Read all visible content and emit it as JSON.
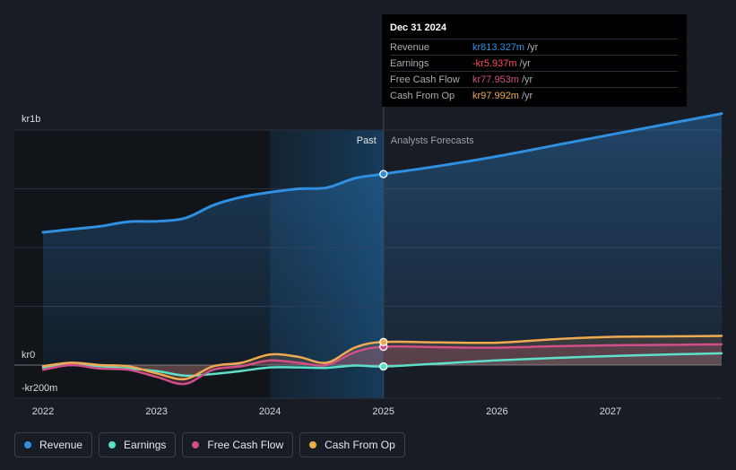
{
  "chart_data": {
    "type": "line",
    "currency_prefix": "kr",
    "x_ticks": [
      "2022",
      "2023",
      "2024",
      "2025",
      "2026",
      "2027"
    ],
    "xlim": [
      2021.9,
      2027.98
    ],
    "ylim": [
      -200,
      1000
    ],
    "y_labels": [
      {
        "value": 1000,
        "label": "kr1b"
      },
      {
        "value": 0,
        "label": "kr0"
      },
      {
        "value": -200,
        "label": "-kr200m"
      }
    ],
    "gridlines": [
      1000,
      750,
      500,
      250,
      0
    ],
    "past_label": "Past",
    "forecast_label": "Analysts Forecasts",
    "divider_x": 2025.0,
    "highlight_from": 2024.0,
    "series": [
      {
        "name": "Revenue",
        "color": "#2f8fe0",
        "points": [
          [
            2022.0,
            565
          ],
          [
            2022.25,
            578
          ],
          [
            2022.5,
            590
          ],
          [
            2022.75,
            610
          ],
          [
            2023.0,
            612
          ],
          [
            2023.25,
            625
          ],
          [
            2023.5,
            680
          ],
          [
            2023.75,
            715
          ],
          [
            2024.0,
            735
          ],
          [
            2024.25,
            750
          ],
          [
            2024.5,
            755
          ],
          [
            2024.75,
            795
          ],
          [
            2025.0,
            813
          ],
          [
            2025.5,
            848
          ],
          [
            2026.0,
            888
          ],
          [
            2026.5,
            934
          ],
          [
            2027.0,
            980
          ],
          [
            2027.5,
            1026
          ],
          [
            2027.98,
            1070
          ]
        ]
      },
      {
        "name": "Earnings",
        "color": "#5de0c7",
        "points": [
          [
            2022.0,
            -10
          ],
          [
            2022.25,
            0
          ],
          [
            2022.5,
            -5
          ],
          [
            2022.75,
            -15
          ],
          [
            2023.0,
            -25
          ],
          [
            2023.25,
            -45
          ],
          [
            2023.5,
            -38
          ],
          [
            2023.75,
            -25
          ],
          [
            2024.0,
            -10
          ],
          [
            2024.25,
            -10
          ],
          [
            2024.5,
            -12
          ],
          [
            2024.75,
            -2
          ],
          [
            2025.0,
            -6
          ],
          [
            2025.5,
            7
          ],
          [
            2026.0,
            20
          ],
          [
            2026.5,
            30
          ],
          [
            2027.0,
            38
          ],
          [
            2027.5,
            45
          ],
          [
            2027.98,
            50
          ]
        ]
      },
      {
        "name": "Free Cash Flow",
        "color": "#d04f87",
        "points": [
          [
            2022.0,
            -20
          ],
          [
            2022.25,
            0
          ],
          [
            2022.5,
            -15
          ],
          [
            2022.75,
            -20
          ],
          [
            2023.0,
            -50
          ],
          [
            2023.25,
            -80
          ],
          [
            2023.5,
            -20
          ],
          [
            2023.75,
            -5
          ],
          [
            2024.0,
            20
          ],
          [
            2024.25,
            10
          ],
          [
            2024.5,
            0
          ],
          [
            2024.75,
            55
          ],
          [
            2025.0,
            78
          ],
          [
            2025.5,
            76
          ],
          [
            2026.0,
            74
          ],
          [
            2026.5,
            80
          ],
          [
            2027.0,
            84
          ],
          [
            2027.5,
            86
          ],
          [
            2027.98,
            88
          ]
        ]
      },
      {
        "name": "Cash From Op",
        "color": "#f0ab52",
        "points": [
          [
            2022.0,
            -5
          ],
          [
            2022.25,
            10
          ],
          [
            2022.5,
            0
          ],
          [
            2022.75,
            -5
          ],
          [
            2023.0,
            -35
          ],
          [
            2023.25,
            -60
          ],
          [
            2023.5,
            -5
          ],
          [
            2023.75,
            10
          ],
          [
            2024.0,
            45
          ],
          [
            2024.25,
            35
          ],
          [
            2024.5,
            10
          ],
          [
            2024.75,
            75
          ],
          [
            2025.0,
            98
          ],
          [
            2025.5,
            96
          ],
          [
            2026.0,
            95
          ],
          [
            2026.5,
            110
          ],
          [
            2027.0,
            120
          ],
          [
            2027.5,
            122
          ],
          [
            2027.98,
            124
          ]
        ]
      }
    ]
  },
  "tooltip": {
    "date": "Dec 31 2024",
    "rows": [
      {
        "label": "Revenue",
        "value": "kr813.327m",
        "unit": "/yr",
        "color": "#2f8fe0"
      },
      {
        "label": "Earnings",
        "value": "-kr5.937m",
        "unit": "/yr",
        "color": "#ff4d5c"
      },
      {
        "label": "Free Cash Flow",
        "value": "kr77.953m",
        "unit": "/yr",
        "color": "#d04f87"
      },
      {
        "label": "Cash From Op",
        "value": "kr97.992m",
        "unit": "/yr",
        "color": "#f0ab52"
      }
    ]
  },
  "legend": [
    {
      "label": "Revenue",
      "color": "#2f8fe0"
    },
    {
      "label": "Earnings",
      "color": "#5de0c7"
    },
    {
      "label": "Free Cash Flow",
      "color": "#d04f87"
    },
    {
      "label": "Cash From Op",
      "color": "#f0ab52"
    }
  ]
}
